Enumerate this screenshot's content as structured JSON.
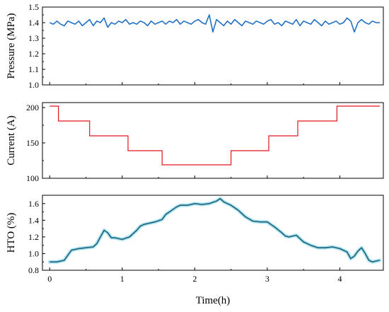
{
  "chart_data": [
    {
      "type": "line",
      "ylabel": "Pressure (MPa)",
      "ylim": [
        1.0,
        1.5
      ],
      "yticks": [
        1.0,
        1.1,
        1.2,
        1.3,
        1.4,
        1.5
      ],
      "ytick_labels": [
        "1.0",
        "1.1",
        "1.2",
        "1.3",
        "1.4",
        "1.5"
      ],
      "xlim": [
        -0.1,
        4.6
      ],
      "show_x_tick_labels": false,
      "series": [
        {
          "color": "#1f6fc4",
          "x": [
            0.0,
            0.05,
            0.1,
            0.15,
            0.2,
            0.25,
            0.3,
            0.35,
            0.4,
            0.45,
            0.5,
            0.55,
            0.6,
            0.65,
            0.7,
            0.75,
            0.8,
            0.85,
            0.9,
            0.95,
            1.0,
            1.05,
            1.1,
            1.15,
            1.2,
            1.25,
            1.3,
            1.35,
            1.4,
            1.45,
            1.5,
            1.55,
            1.6,
            1.65,
            1.7,
            1.75,
            1.8,
            1.85,
            1.9,
            1.95,
            2.0,
            2.05,
            2.1,
            2.15,
            2.2,
            2.25,
            2.3,
            2.35,
            2.4,
            2.45,
            2.5,
            2.55,
            2.6,
            2.65,
            2.7,
            2.75,
            2.8,
            2.85,
            2.9,
            2.95,
            3.0,
            3.05,
            3.1,
            3.15,
            3.2,
            3.25,
            3.3,
            3.35,
            3.4,
            3.45,
            3.5,
            3.55,
            3.6,
            3.65,
            3.7,
            3.75,
            3.8,
            3.85,
            3.9,
            3.95,
            4.0,
            4.05,
            4.1,
            4.15,
            4.2,
            4.25,
            4.3,
            4.35,
            4.4,
            4.45,
            4.5,
            4.55
          ],
          "y": [
            1.4,
            1.39,
            1.41,
            1.39,
            1.38,
            1.41,
            1.4,
            1.39,
            1.41,
            1.38,
            1.4,
            1.42,
            1.38,
            1.41,
            1.4,
            1.43,
            1.37,
            1.4,
            1.39,
            1.41,
            1.4,
            1.42,
            1.39,
            1.4,
            1.39,
            1.41,
            1.4,
            1.38,
            1.41,
            1.39,
            1.4,
            1.41,
            1.39,
            1.41,
            1.4,
            1.42,
            1.39,
            1.41,
            1.4,
            1.39,
            1.41,
            1.42,
            1.4,
            1.39,
            1.45,
            1.34,
            1.42,
            1.4,
            1.38,
            1.41,
            1.39,
            1.42,
            1.4,
            1.38,
            1.41,
            1.4,
            1.39,
            1.41,
            1.4,
            1.39,
            1.41,
            1.42,
            1.39,
            1.4,
            1.38,
            1.41,
            1.4,
            1.39,
            1.42,
            1.38,
            1.41,
            1.4,
            1.39,
            1.42,
            1.4,
            1.38,
            1.41,
            1.39,
            1.4,
            1.41,
            1.39,
            1.4,
            1.43,
            1.41,
            1.34,
            1.4,
            1.42,
            1.4,
            1.39,
            1.41,
            1.4,
            1.4
          ]
        }
      ]
    },
    {
      "type": "line",
      "ylabel": "Current (A)",
      "ylim": [
        100,
        207
      ],
      "yticks": [
        100,
        150,
        200
      ],
      "ytick_labels": [
        "100",
        "150",
        "200"
      ],
      "xlim": [
        -0.1,
        4.6
      ],
      "show_x_tick_labels": false,
      "series": [
        {
          "color": "#e0181d",
          "step": true,
          "x": [
            0.0,
            0.12,
            0.12,
            0.55,
            0.55,
            1.08,
            1.08,
            1.55,
            1.55,
            2.5,
            2.5,
            3.02,
            3.02,
            3.42,
            3.42,
            3.96,
            3.96,
            4.55
          ],
          "y": [
            202,
            202,
            181,
            181,
            160,
            160,
            139,
            139,
            119,
            119,
            139,
            139,
            160,
            160,
            181,
            181,
            202,
            202
          ]
        }
      ]
    },
    {
      "type": "line",
      "ylabel": "HTO (%)",
      "xlabel": "Time(h)",
      "ylim": [
        0.8,
        1.7
      ],
      "yticks": [
        0.8,
        1.0,
        1.2,
        1.4,
        1.6
      ],
      "ytick_labels": [
        "0.8",
        "1.0",
        "1.2",
        "1.4",
        "1.6"
      ],
      "xlim": [
        -0.1,
        4.6
      ],
      "xticks": [
        0,
        1,
        2,
        3,
        4
      ],
      "xtick_labels": [
        "0",
        "1",
        "2",
        "3",
        "4"
      ],
      "series": [
        {
          "color": "#1f5f78",
          "x": [
            0.0,
            0.1,
            0.2,
            0.25,
            0.3,
            0.4,
            0.5,
            0.6,
            0.65,
            0.7,
            0.75,
            0.8,
            0.85,
            0.9,
            1.0,
            1.1,
            1.2,
            1.25,
            1.3,
            1.35,
            1.45,
            1.55,
            1.6,
            1.65,
            1.7,
            1.75,
            1.8,
            1.85,
            1.9,
            2.0,
            2.1,
            2.2,
            2.3,
            2.35,
            2.4,
            2.45,
            2.5,
            2.55,
            2.6,
            2.65,
            2.7,
            2.8,
            2.9,
            3.0,
            3.1,
            3.2,
            3.25,
            3.3,
            3.4,
            3.5,
            3.6,
            3.7,
            3.8,
            3.9,
            4.0,
            4.1,
            4.15,
            4.2,
            4.25,
            4.3,
            4.35,
            4.4,
            4.45,
            4.5,
            4.55
          ],
          "y": [
            0.9,
            0.9,
            0.92,
            0.98,
            1.04,
            1.06,
            1.07,
            1.08,
            1.12,
            1.2,
            1.28,
            1.25,
            1.19,
            1.19,
            1.17,
            1.2,
            1.28,
            1.33,
            1.35,
            1.36,
            1.38,
            1.41,
            1.47,
            1.5,
            1.53,
            1.56,
            1.58,
            1.58,
            1.58,
            1.6,
            1.59,
            1.6,
            1.63,
            1.66,
            1.62,
            1.6,
            1.58,
            1.55,
            1.52,
            1.48,
            1.44,
            1.39,
            1.38,
            1.38,
            1.32,
            1.25,
            1.21,
            1.2,
            1.22,
            1.14,
            1.1,
            1.07,
            1.07,
            1.08,
            1.06,
            1.02,
            0.94,
            0.97,
            1.03,
            1.07,
            1.0,
            0.92,
            0.9,
            0.91,
            0.92
          ]
        }
      ]
    }
  ]
}
